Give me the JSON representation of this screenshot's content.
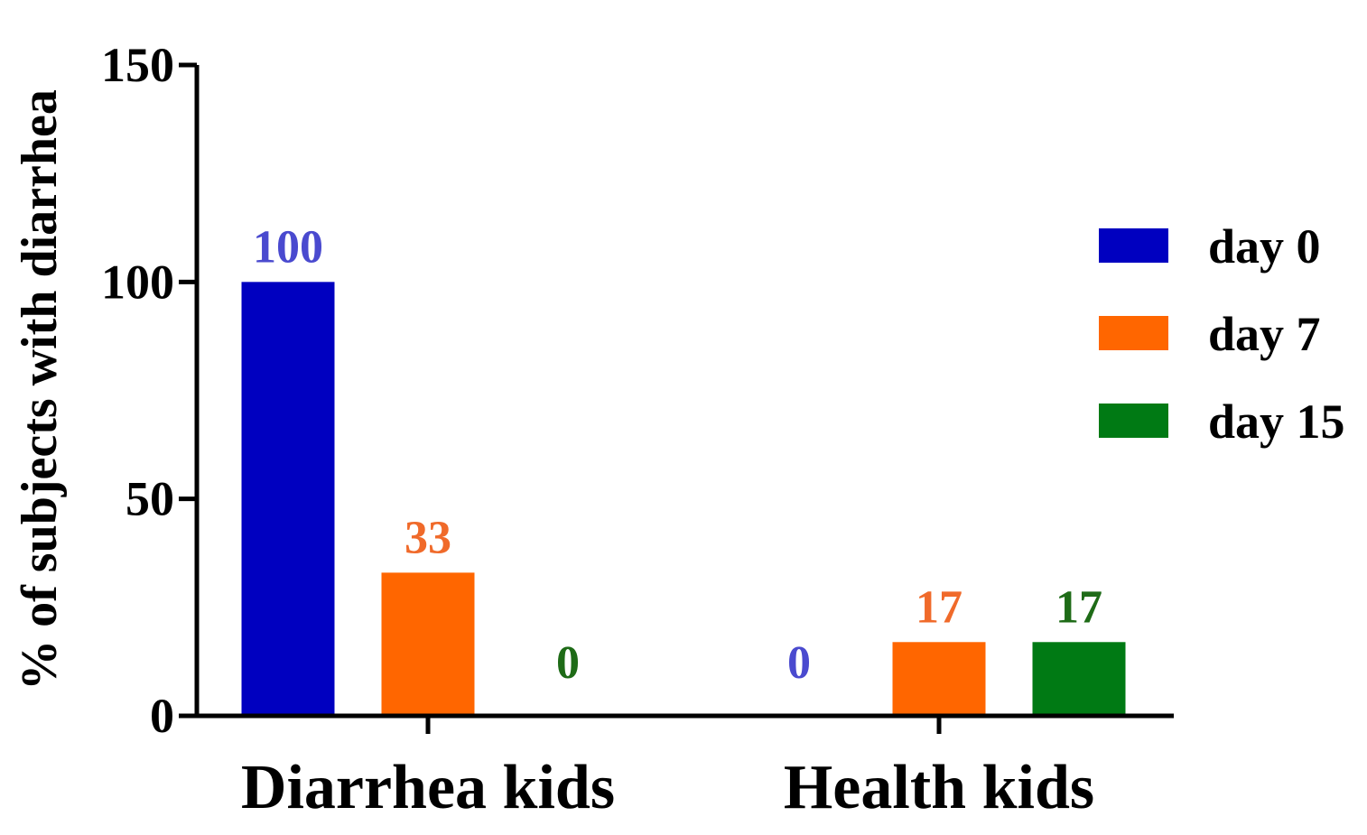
{
  "chart_data": {
    "type": "bar",
    "title": "",
    "xlabel": "",
    "ylabel": "% of subjects with diarrhea",
    "ylim": [
      0,
      150
    ],
    "yticks": [
      0,
      50,
      100,
      150
    ],
    "grid": false,
    "legend_position": "right",
    "categories": [
      "Diarrhea kids",
      "Health kids"
    ],
    "series": [
      {
        "name": "day 0",
        "color": "#0000C0",
        "label_color": "#4A4ACF",
        "values": [
          100,
          0
        ],
        "labels": [
          "100",
          "0"
        ]
      },
      {
        "name": "day 7",
        "color": "#FF6600",
        "label_color": "#F06A2A",
        "values": [
          33,
          17
        ],
        "labels": [
          "33",
          "17"
        ]
      },
      {
        "name": "day 15",
        "color": "#007A14",
        "label_color": "#1E6B17",
        "values": [
          0,
          17
        ],
        "labels": [
          "0",
          "17"
        ]
      }
    ]
  }
}
